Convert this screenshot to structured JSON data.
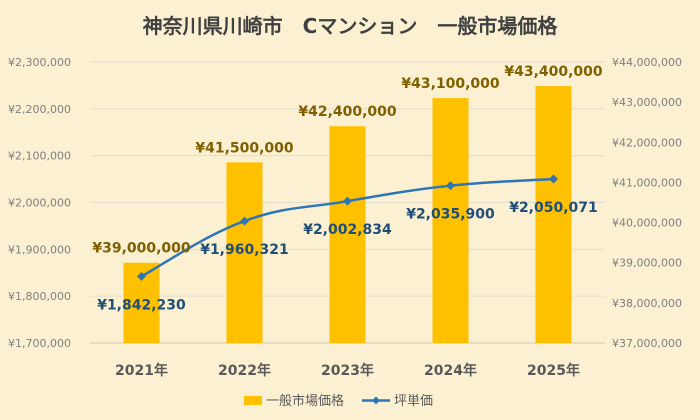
{
  "colors": {
    "background": "#fbf1d2",
    "bar": "#ffc000",
    "line": "#2e75b6",
    "bar_label": "#7f6000",
    "line_label": "#1f4e79",
    "axis_text": "#7f7f7f",
    "category_text": "#595959",
    "title_text": "#404040",
    "grid": "#e2dccb"
  },
  "chart_data": {
    "type": "bar",
    "title": "神奈川県川崎市　Cマンション　一般市場価格",
    "categories": [
      "2021年",
      "2022年",
      "2023年",
      "2024年",
      "2025年"
    ],
    "series": [
      {
        "name": "一般市場価格",
        "type": "bar",
        "axis": "right",
        "values": [
          39000000,
          41500000,
          42400000,
          43100000,
          43400000
        ],
        "labels": [
          "¥39,000,000",
          "¥41,500,000",
          "¥42,400,000",
          "¥43,100,000",
          "¥43,400,000"
        ]
      },
      {
        "name": "坪単価",
        "type": "line",
        "axis": "left",
        "values": [
          1842230,
          1960321,
          2002834,
          2035900,
          2050071
        ],
        "labels": [
          "¥1,842,230",
          "¥1,960,321",
          "¥2,002,834",
          "¥2,035,900",
          "¥2,050,071"
        ]
      }
    ],
    "left_axis": {
      "ylim": [
        1700000,
        2300000
      ],
      "ticks": [
        1700000,
        1800000,
        1900000,
        2000000,
        2100000,
        2200000,
        2300000
      ],
      "tick_labels": [
        "¥1,700,000",
        "¥1,800,000",
        "¥1,900,000",
        "¥2,000,000",
        "¥2,100,000",
        "¥2,200,000",
        "¥2,300,000"
      ]
    },
    "right_axis": {
      "ylim": [
        37000000,
        44000000
      ],
      "ticks": [
        37000000,
        38000000,
        39000000,
        40000000,
        41000000,
        42000000,
        43000000,
        44000000
      ],
      "tick_labels": [
        "¥37,000,000",
        "¥38,000,000",
        "¥39,000,000",
        "¥40,000,000",
        "¥41,000,000",
        "¥42,000,000",
        "¥43,000,000",
        "¥44,000,000"
      ]
    },
    "grid": true,
    "legend_position": "bottom"
  }
}
